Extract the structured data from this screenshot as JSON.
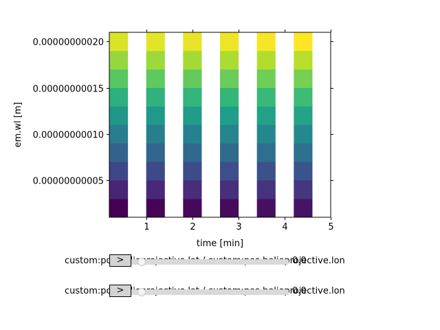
{
  "chart_data": {
    "type": "heatmap",
    "title": "",
    "xlabel": "time [min]",
    "ylabel": "em.wl [m]",
    "xlim": [
      0.2,
      5.0
    ],
    "ylim": [
      1e-11,
      2.1e-10
    ],
    "x_ticks": [
      1,
      2,
      3,
      4,
      5
    ],
    "x_tick_labels": [
      "1",
      "2",
      "3",
      "4",
      "5"
    ],
    "y_ticks": [
      5e-11,
      1e-10,
      1.5e-10,
      2e-10
    ],
    "y_tick_labels": [
      "0.00000000005",
      "0.00000000010",
      "0.00000000015",
      "0.00000000020"
    ],
    "colormap": "viridis",
    "grid": false,
    "time_columns": [
      {
        "x_start": 0.2,
        "x_end": 0.6
      },
      {
        "x_start": 1.0,
        "x_end": 1.4
      },
      {
        "x_start": 1.8,
        "x_end": 2.2
      },
      {
        "x_start": 2.6,
        "x_end": 3.0
      },
      {
        "x_start": 3.4,
        "x_end": 3.8
      },
      {
        "x_start": 4.2,
        "x_end": 4.6
      }
    ],
    "wavelength_bins": [
      {
        "y_start": 1e-11,
        "y_end": 3e-11
      },
      {
        "y_start": 3e-11,
        "y_end": 5e-11
      },
      {
        "y_start": 5e-11,
        "y_end": 7e-11
      },
      {
        "y_start": 7e-11,
        "y_end": 9e-11
      },
      {
        "y_start": 9e-11,
        "y_end": 1.1e-10
      },
      {
        "y_start": 1.1e-10,
        "y_end": 1.3e-10
      },
      {
        "y_start": 1.3e-10,
        "y_end": 1.5e-10
      },
      {
        "y_start": 1.5e-10,
        "y_end": 1.7e-10
      },
      {
        "y_start": 1.7e-10,
        "y_end": 1.9e-10
      },
      {
        "y_start": 1.9e-10,
        "y_end": 2.1e-10
      }
    ],
    "values": [
      [
        0,
        10,
        20,
        30,
        40,
        50,
        60,
        70,
        80,
        90
      ],
      [
        1,
        11,
        21,
        31,
        41,
        51,
        61,
        71,
        81,
        91
      ],
      [
        2,
        12,
        22,
        32,
        42,
        52,
        62,
        72,
        82,
        92
      ],
      [
        3,
        13,
        23,
        33,
        43,
        53,
        63,
        73,
        83,
        93
      ],
      [
        4,
        14,
        24,
        34,
        44,
        54,
        64,
        74,
        84,
        94
      ],
      [
        5,
        15,
        25,
        35,
        45,
        55,
        65,
        75,
        85,
        95
      ]
    ]
  },
  "sliders": [
    {
      "label": "custom:pos.helioprojective.lat / custom:pos.helioprojective.lon",
      "button_label": ">",
      "value": "0.0"
    },
    {
      "label": "custom:pos.helioprojective.lat / custom:pos.helioprojective.lon",
      "button_label": ">",
      "value": "0.0"
    }
  ]
}
